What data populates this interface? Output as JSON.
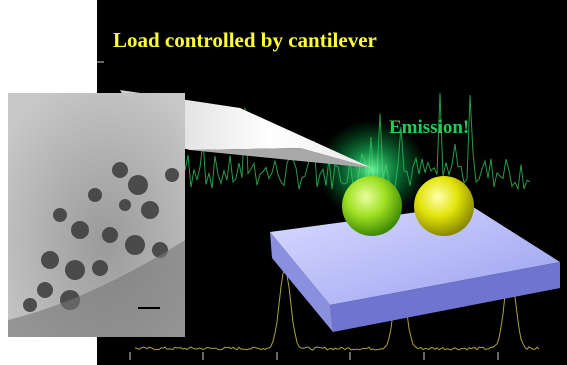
{
  "title": "Load controlled by cantilever",
  "annotation": "Emission!"
}
